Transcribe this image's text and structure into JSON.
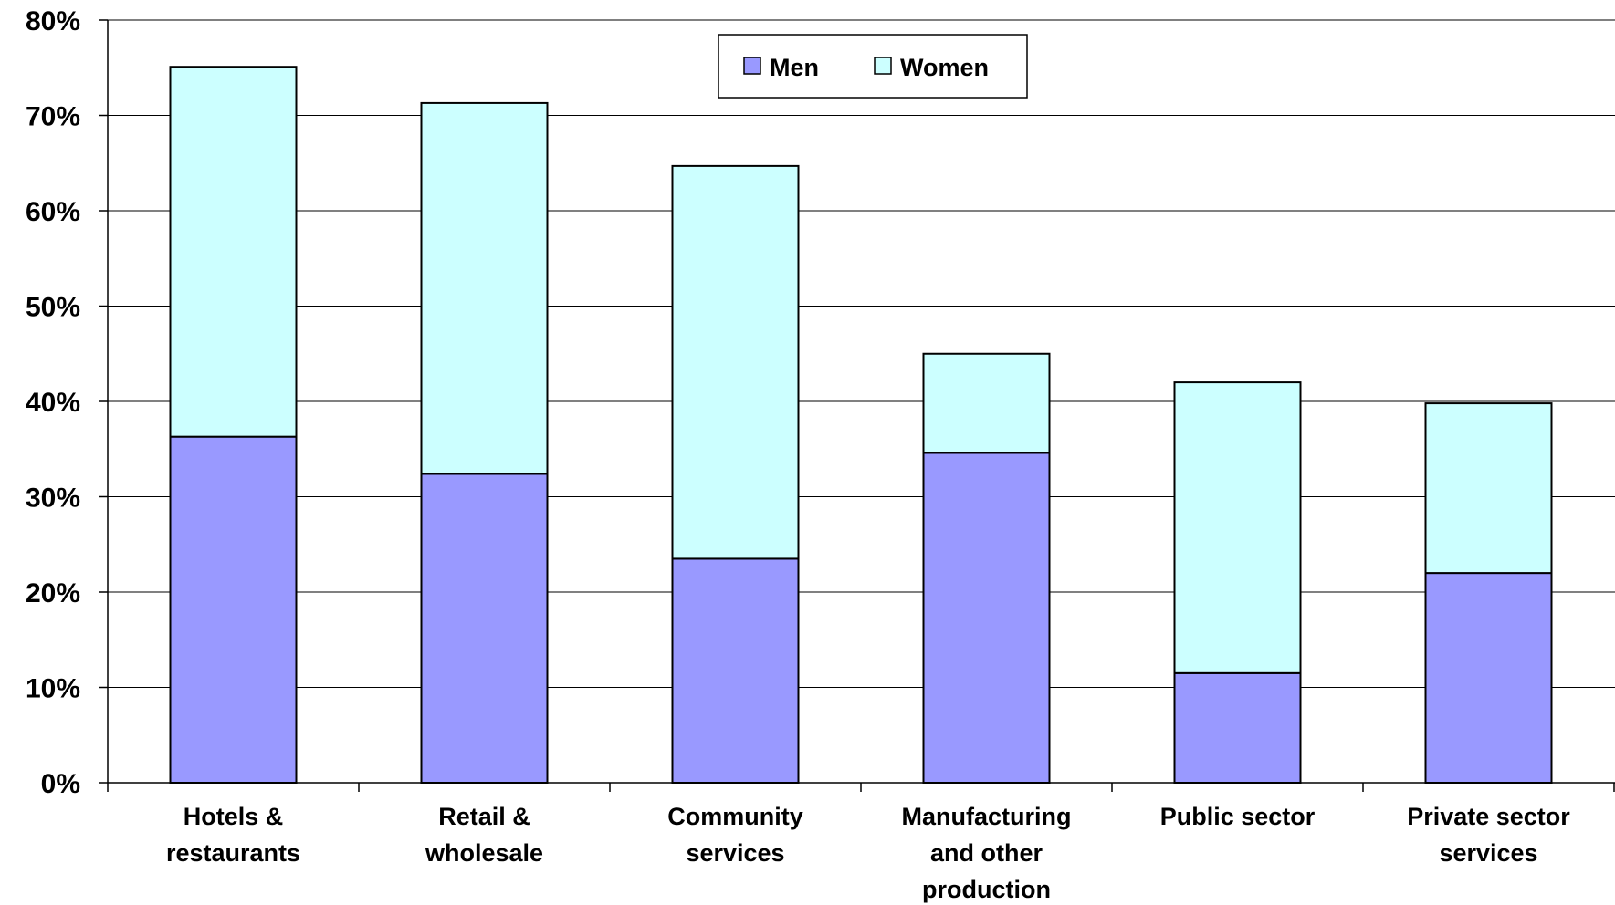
{
  "chart_data": {
    "type": "bar",
    "stacked": true,
    "title": "",
    "xlabel": "",
    "ylabel": "",
    "ylim": [
      0,
      80
    ],
    "yticks": [
      "0%",
      "10%",
      "20%",
      "30%",
      "40%",
      "50%",
      "60%",
      "70%",
      "80%"
    ],
    "categories": [
      [
        "Hotels &",
        "restaurants"
      ],
      [
        "Retail &",
        "wholesale"
      ],
      [
        "Community",
        "services"
      ],
      [
        "Manufacturing",
        "and other",
        "production"
      ],
      [
        "Public sector"
      ],
      [
        "Private sector",
        "services"
      ]
    ],
    "series": [
      {
        "name": "Men",
        "color": "#9999ff",
        "values": [
          36.3,
          32.4,
          23.5,
          34.6,
          11.5,
          22.0
        ]
      },
      {
        "name": "Women",
        "color": "#ccffff",
        "values": [
          38.8,
          38.9,
          41.2,
          10.4,
          30.5,
          17.8
        ]
      }
    ],
    "grid": true,
    "legend_position": "top-center"
  }
}
